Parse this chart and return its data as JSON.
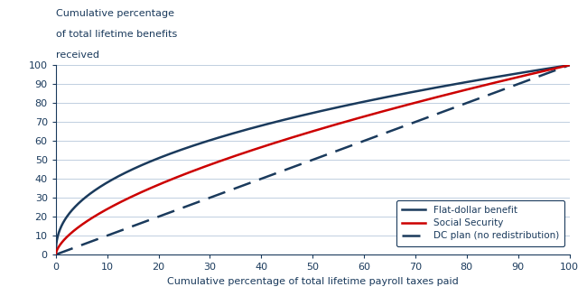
{
  "title_ylabel_line1": "Cumulative percentage",
  "title_ylabel_line2": "of total lifetime benefits",
  "title_ylabel_line3": "received",
  "xlabel": "Cumulative percentage of total lifetime payroll taxes paid",
  "xlim": [
    0,
    100
  ],
  "ylim": [
    0,
    100
  ],
  "xticks": [
    0,
    10,
    20,
    30,
    40,
    50,
    60,
    70,
    80,
    90,
    100
  ],
  "yticks": [
    0,
    10,
    20,
    30,
    40,
    50,
    60,
    70,
    80,
    90,
    100
  ],
  "flat_dollar_color": "#1a3a5c",
  "social_security_color": "#cc0000",
  "dc_plan_color": "#1a3a5c",
  "flat_dollar_exp": 0.42,
  "social_security_exp": 0.62,
  "dc_plan_exp": 1.0,
  "legend_labels": [
    "Flat-dollar benefit",
    "Social Security",
    "DC plan (no redistribution)"
  ],
  "background_color": "#ffffff",
  "grid_color": "#c0cfe0",
  "axis_color": "#1a3a5c",
  "tick_label_color": "#1a3a5c",
  "label_color": "#1a3a5c",
  "tick_fontsize": 8,
  "label_fontsize": 8,
  "line_width": 1.8,
  "legend_fontsize": 7.5
}
